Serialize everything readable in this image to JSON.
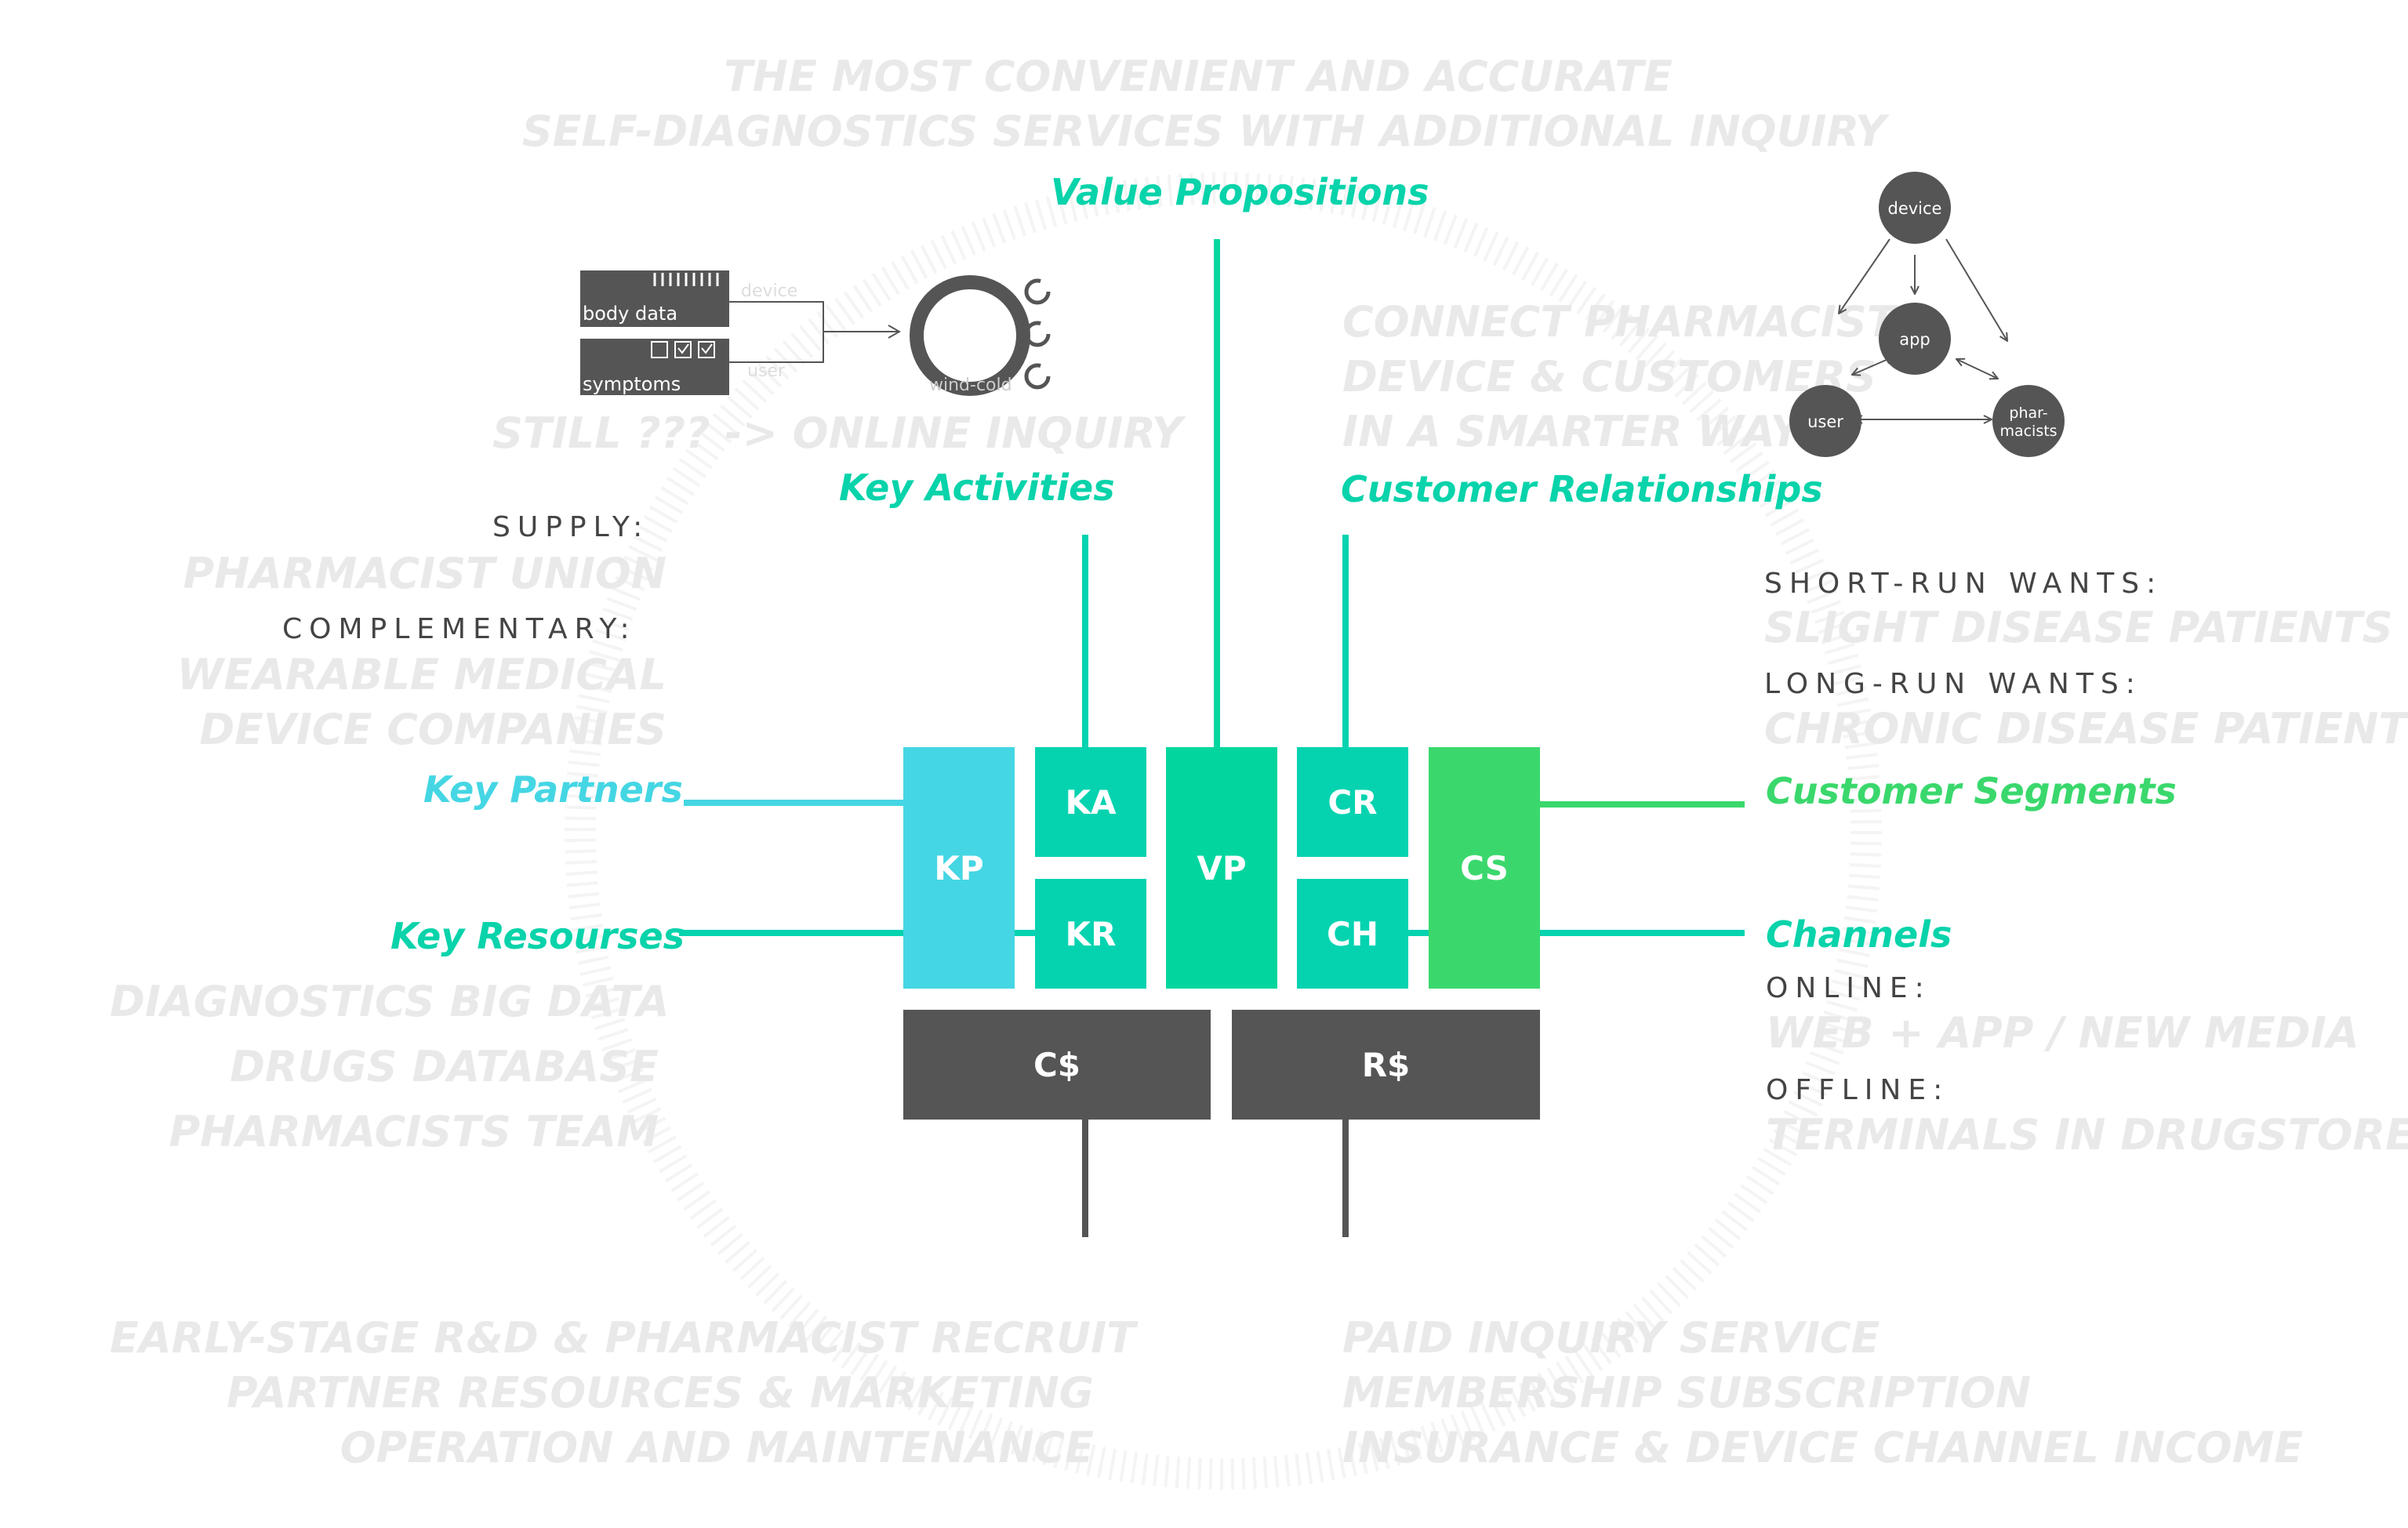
{
  "headline": [
    "THE MOST CONVENIENT AND ACCURATE",
    "SELF-DIAGNOSTICS SERVICES WITH ADDITIONAL INQUIRY"
  ],
  "value_propositions": {
    "title": "Value Propositions"
  },
  "key_activities": {
    "title": "Key Activities",
    "inquiry": "STILL ??? -> ONLINE INQUIRY",
    "diagram": {
      "body_data": "body data",
      "symptoms": "symptoms",
      "device": "device",
      "user": "user",
      "wind_cold": "wind-cold"
    }
  },
  "customer_relationships": {
    "title": "Customer Relationships",
    "lines": [
      "CONNECT PHARMACISTS",
      "DEVICE & CUSTOMERS",
      "IN A SMARTER WAY"
    ],
    "network": {
      "device": "device",
      "app": "app",
      "user": "user",
      "pharmacists": [
        "phar-",
        "macists"
      ]
    }
  },
  "key_partners": {
    "title": "Key Partners",
    "supply_label": "SUPPLY:",
    "supply": "PHARMACIST UNION",
    "complementary_label": "COMPLEMENTARY:",
    "complementary": [
      "WEARABLE MEDICAL",
      "DEVICE COMPANIES"
    ]
  },
  "key_resources": {
    "title": "Key Resourses",
    "items": [
      "DIAGNOSTICS BIG DATA",
      "DRUGS DATABASE",
      "PHARMACISTS TEAM"
    ]
  },
  "customer_segments": {
    "title": "Customer Segments",
    "short_label": "SHORT-RUN WANTS:",
    "short": "SLIGHT DISEASE PATIENTS",
    "long_label": "LONG-RUN WANTS:",
    "long": "CHRONIC DISEASE PATIENTS"
  },
  "channels": {
    "title": "Channels",
    "online_label": "ONLINE:",
    "online": "WEB + APP / NEW MEDIA",
    "offline_label": "OFFLINE:",
    "offline": "TERMINALS IN DRUGSTORES"
  },
  "blocks": {
    "kp": "KP",
    "ka": "KA",
    "kr": "KR",
    "vp": "VP",
    "cr": "CR",
    "ch": "CH",
    "cs": "CS",
    "cost": "C$",
    "revenue": "R$"
  },
  "cost_structure": [
    "EARLY-STAGE R&D & PHARMACIST RECRUIT",
    "PARTNER RESOURCES & MARKETING",
    "OPERATION AND MAINTENANCE"
  ],
  "revenue_streams": [
    "PAID INQUIRY SERVICE",
    "MEMBERSHIP SUBSCRIPTION",
    "INSURANCE & DEVICE CHANNEL INCOME"
  ],
  "colors": {
    "kp": "#45d6e4",
    "ka": "#05d3b0",
    "vp": "#02d69e",
    "cs": "#3ad86c",
    "dark": "#555555"
  }
}
